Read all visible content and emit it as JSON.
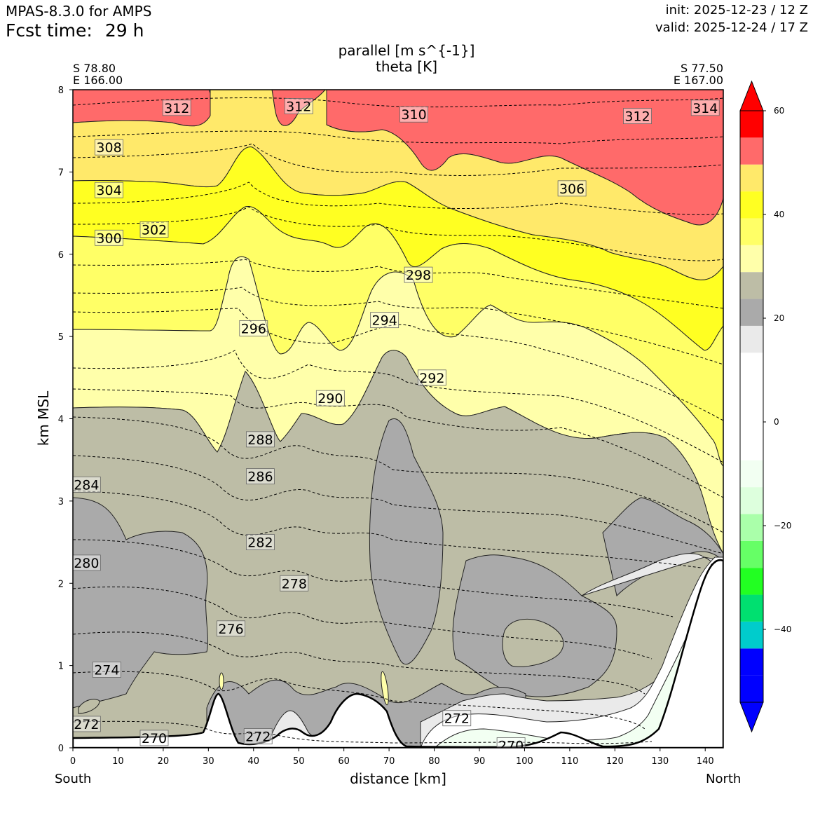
{
  "header": {
    "model": "MPAS-8.3.0 for AMPS",
    "fcst_label": "Fcst time:",
    "fcst_value": "29 h",
    "init": "init: 2025-12-23 / 12 Z",
    "valid": "valid: 2025-12-24 / 17 Z"
  },
  "cross_section": {
    "start_lat": "S 78.80",
    "start_lon": "E 166.00",
    "end_lat": "S 77.50",
    "end_lon": "E 167.00",
    "start_dir": "South",
    "end_dir": "North"
  },
  "chart_data": {
    "type": "heatmap",
    "title_fill": "parallel [m s^{-1}]",
    "title_contour": "theta [K]",
    "xlabel": "distance [km]",
    "ylabel": "km MSL",
    "xlim": [
      0,
      144
    ],
    "ylim": [
      0,
      8
    ],
    "xticks": [
      0,
      10,
      20,
      30,
      40,
      50,
      60,
      70,
      80,
      90,
      100,
      110,
      120,
      130,
      140
    ],
    "yticks": [
      0,
      1,
      2,
      3,
      4,
      5,
      6,
      7,
      8
    ],
    "colorbar": {
      "range": [
        -55,
        55
      ],
      "ticks": [
        60,
        40,
        20,
        0,
        -20,
        -40
      ],
      "levels": [
        -55,
        -50,
        -45,
        -40,
        -35,
        -30,
        -25,
        -20,
        -15,
        -10,
        -5,
        0,
        5,
        10,
        15,
        20,
        25,
        30,
        35,
        40,
        45,
        50,
        55
      ],
      "colors": [
        "#0000ff",
        "#0000ff",
        "#00cccc",
        "#00e070",
        "#22ff22",
        "#66ff66",
        "#aaffaa",
        "#ddffdd",
        "#f2fff2",
        "#ffffff",
        "#ffffff",
        "#ffffff",
        "#ffffff",
        "#eaeaea",
        "#aaaaaa",
        "#bdbda6",
        "#ffffaa",
        "#ffff66",
        "#ffff22",
        "#ffe96a",
        "#ff6a6a",
        "#ff0000"
      ],
      "under_color": "#0000ff",
      "over_color": "#ff0000"
    },
    "fill_bands": [
      {
        "label": "40 to 50",
        "color": "#ff6a6a"
      },
      {
        "label": "35 to 40",
        "color": "#ffe96a"
      },
      {
        "label": "30 to 35",
        "color": "#ffff22"
      },
      {
        "label": "25 to 30",
        "color": "#ffff66"
      },
      {
        "label": "20 to 25",
        "color": "#ffffaa"
      },
      {
        "label": "15 to 20",
        "color": "#bdbda6"
      },
      {
        "label": "10 to 15",
        "color": "#aaaaaa"
      },
      {
        "label": "5 to 10",
        "color": "#eaeaea"
      },
      {
        "label": "-5 to 5",
        "color": "#ffffff"
      },
      {
        "label": "-10 to -5",
        "color": "#f2fff2"
      }
    ],
    "theta_contour_labels": [
      {
        "value": "312",
        "x": 23,
        "y": 7.78
      },
      {
        "value": "312",
        "x": 50,
        "y": 7.8
      },
      {
        "value": "310",
        "x": 75.5,
        "y": 7.7
      },
      {
        "value": "312",
        "x": 125,
        "y": 7.68
      },
      {
        "value": "314",
        "x": 140,
        "y": 7.78
      },
      {
        "value": "308",
        "x": 8,
        "y": 7.3
      },
      {
        "value": "306",
        "x": 110.5,
        "y": 6.8
      },
      {
        "value": "304",
        "x": 8,
        "y": 6.78
      },
      {
        "value": "302",
        "x": 18,
        "y": 6.3
      },
      {
        "value": "300",
        "x": 8,
        "y": 6.2
      },
      {
        "value": "298",
        "x": 76.5,
        "y": 5.75
      },
      {
        "value": "296",
        "x": 40,
        "y": 5.1
      },
      {
        "value": "294",
        "x": 69,
        "y": 5.2
      },
      {
        "value": "292",
        "x": 79.5,
        "y": 4.5
      },
      {
        "value": "290",
        "x": 57,
        "y": 4.25
      },
      {
        "value": "288",
        "x": 41.5,
        "y": 3.75
      },
      {
        "value": "286",
        "x": 41.5,
        "y": 3.3
      },
      {
        "value": "284",
        "x": 3,
        "y": 3.2
      },
      {
        "value": "282",
        "x": 41.5,
        "y": 2.5
      },
      {
        "value": "280",
        "x": 3,
        "y": 2.25
      },
      {
        "value": "278",
        "x": 49,
        "y": 2.0
      },
      {
        "value": "276",
        "x": 35,
        "y": 1.45
      },
      {
        "value": "274",
        "x": 7.5,
        "y": 0.95
      },
      {
        "value": "272",
        "x": 3,
        "y": 0.29
      },
      {
        "value": "270",
        "x": 18,
        "y": 0.12
      },
      {
        "value": "272",
        "x": 41,
        "y": 0.14
      },
      {
        "value": "272",
        "x": 85,
        "y": 0.36
      },
      {
        "value": "270",
        "x": 97,
        "y": 0.03
      }
    ]
  }
}
